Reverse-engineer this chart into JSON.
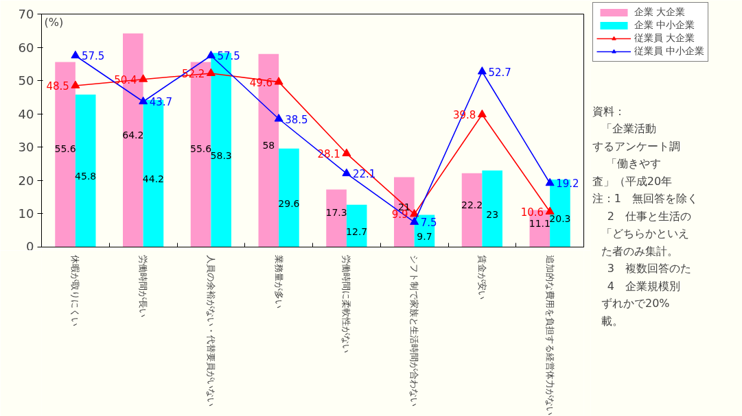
{
  "chart_data": {
    "type": "bar",
    "ylabel": "(%)",
    "categories": [
      "休暇が取りにくい",
      "労働時間が長い",
      "人員の余裕がない・代替要員がいない",
      "業務量が多い",
      "労働時間に柔軟性がない",
      "シフト制で家族と生活時間が合わない",
      "賃金が安い",
      "追加的な費用を負担する経営体力がない"
    ],
    "series": [
      {
        "name": "企業 大企業",
        "color": "#ff99cc",
        "values": [
          55.6,
          64.2,
          55.6,
          58,
          17.3,
          21,
          22.2,
          11.1
        ]
      },
      {
        "name": "企業 中小企業",
        "color": "#00ffff",
        "values": [
          45.8,
          44.2,
          58.3,
          29.6,
          12.7,
          9.7,
          23,
          20.3
        ]
      },
      {
        "name": "従業員 大企業",
        "type": "line",
        "color": "#ff0000",
        "values": [
          48.5,
          50.4,
          52.2,
          49.6,
          28.1,
          9.9,
          39.8,
          10.6
        ]
      },
      {
        "name": "従業員 中小企業",
        "type": "line",
        "color": "#0000ff",
        "values": [
          57.5,
          43.7,
          57.5,
          38.5,
          22.1,
          7.5,
          52.7,
          19.2
        ]
      }
    ],
    "ylim": [
      0,
      70
    ],
    "yticks": [
      0,
      10,
      20,
      30,
      40,
      50,
      60,
      70
    ],
    "marker": "triangle",
    "line_style": "solid",
    "data_labels": true,
    "grid": false,
    "legend": "top right",
    "annotations": [
      "資料：",
      "「企業活動",
      "するアンケート調",
      "「働きやす",
      "査」（平成20年",
      "注：1　無回答を除く",
      "2　仕事と生活の",
      "「どちらかといえ",
      "た者のみ集計。",
      "3　複数回答のた",
      "4　企業規模別",
      "ずれかで20%",
      "載。"
    ]
  }
}
